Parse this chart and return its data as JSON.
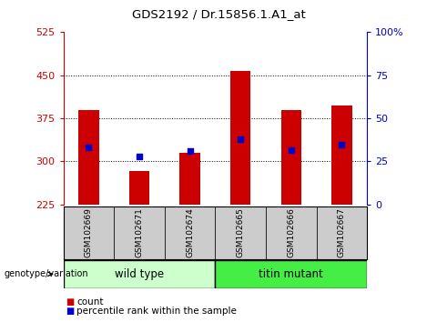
{
  "title": "GDS2192 / Dr.15856.1.A1_at",
  "samples": [
    "GSM102669",
    "GSM102671",
    "GSM102674",
    "GSM102665",
    "GSM102666",
    "GSM102667"
  ],
  "count_values": [
    390,
    283,
    315,
    457,
    390,
    397
  ],
  "percentile_values": [
    325,
    308,
    318,
    338,
    320,
    330
  ],
  "y_min": 225,
  "y_max": 525,
  "y_ticks": [
    225,
    300,
    375,
    450,
    525
  ],
  "y_right_ticks": [
    0,
    25,
    50,
    75,
    100
  ],
  "y_right_labels": [
    "0",
    "25",
    "50",
    "75",
    "100%"
  ],
  "bar_color": "#cc0000",
  "dot_color": "#0000cc",
  "wild_type_label": "wild type",
  "titin_mutant_label": "titin mutant",
  "wild_type_color": "#ccffcc",
  "titin_mutant_color": "#44ee44",
  "group_label": "genotype/variation",
  "legend_count": "count",
  "legend_percentile": "percentile rank within the sample",
  "bar_width": 0.4,
  "bg_color": "#ffffff",
  "tick_area_color": "#cccccc",
  "title_fontsize": 10
}
